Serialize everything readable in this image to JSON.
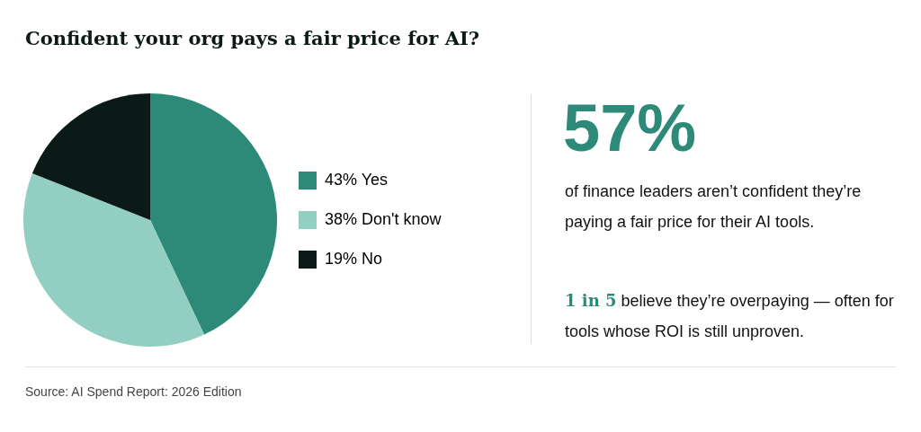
{
  "chart_data": {
    "type": "pie",
    "title": "Confident your org pays a fair price for AI?",
    "categories": [
      "Yes",
      "Don't know",
      "No"
    ],
    "values": [
      43,
      38,
      19
    ],
    "value_labels": [
      "43%",
      "38%",
      "19%"
    ],
    "colors": [
      "#2e8a78",
      "#92cfc2",
      "#0b1a17"
    ],
    "legend": "right",
    "annotations": [
      "57%",
      "of finance leaders aren’t confident they’re paying a fair price for their AI tools.",
      "1 in 5",
      "believe they’re overpaying — often for tools whose ROI is still unproven.",
      "Source: AI Spend Report: 2026 Edition"
    ]
  }
}
